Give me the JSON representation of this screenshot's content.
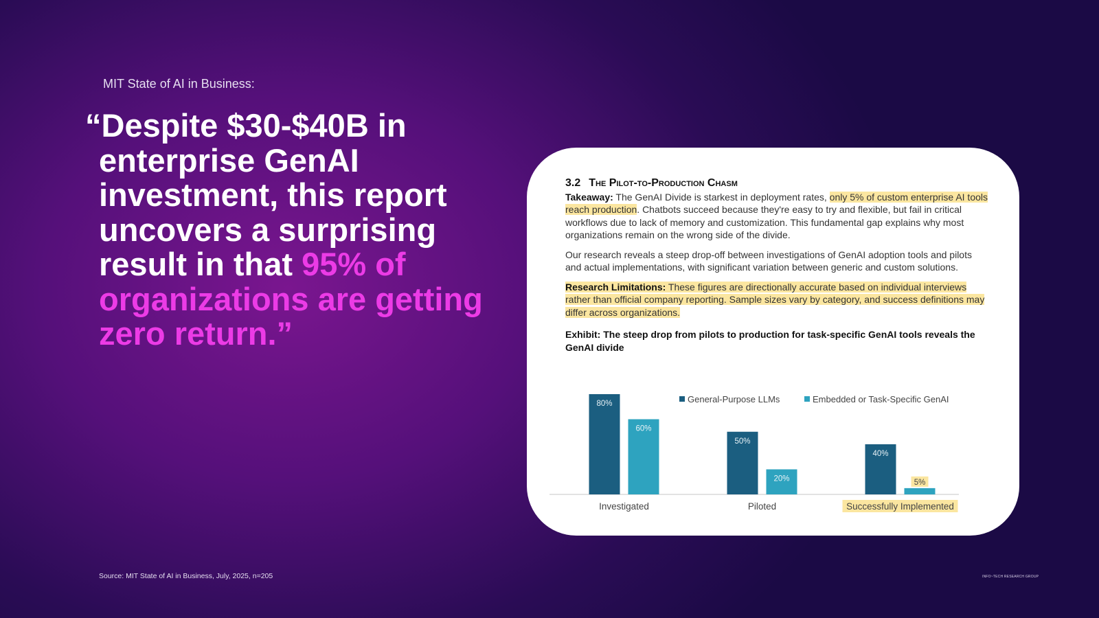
{
  "header": {
    "label": "MIT State of AI in Business:"
  },
  "quote": {
    "text": "“Despite $30-$40B in enterprise GenAI investment, this report uncovers a surprising result in that ",
    "highlight": "95% of organizations are getting zero return.”"
  },
  "document": {
    "section_number": "3.2",
    "section_title": "The Pilot-to-Production Chasm",
    "paragraphs": [
      {
        "label": "Takeaway:",
        "text": "The GenAI Divide is starkest in deployment rates,",
        "highlight": "only 5% of custom enterprise AI tools reach production",
        "rest": ". Chatbots succeed because they're easy to try and flexible, but fail in critical workflows due to lack of memory and customization. This fundamental gap explains why most organizations remain on the wrong side of the divide."
      },
      {
        "text": "Our research reveals a steep drop-off between investigations of GenAI adoption tools and pilots and actual implementations, with significant variation between generic and custom solutions."
      },
      {
        "label": "Research Limitations:",
        "highlight": "These figures are directionally accurate based on individual interviews rather than official company reporting. Sample sizes vary by category, and success definitions may differ across organizations."
      }
    ]
  },
  "chart_data": {
    "type": "bar",
    "title": "Exhibit: The steep drop from pilots to production for task-specific GenAI tools reveals the GenAI divide",
    "categories": [
      "Investigated",
      "Piloted",
      "Successfully Implemented"
    ],
    "series": [
      {
        "name": "General-Purpose LLMs",
        "color": "#1b5e80",
        "values": [
          80,
          50,
          40
        ],
        "value_labels": [
          "80%",
          "50%",
          "40%"
        ]
      },
      {
        "name": "Embedded or Task-Specific GenAI",
        "color": "#2ea3bf",
        "values": [
          60,
          20,
          5
        ],
        "value_labels": [
          "60%",
          "20%",
          "5%"
        ]
      }
    ]
  },
  "footer": {
    "source": "Source: MIT State of AI in Business, July, 2025, n=205",
    "brand": "INFO~TECH RESEARCH GROUP"
  }
}
